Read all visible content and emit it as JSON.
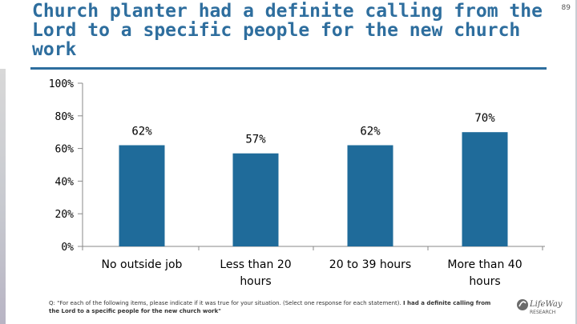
{
  "page_number": "89",
  "title": "Church planter had a definite calling from the Lord to a specific people for the new church work",
  "footnote": {
    "question": "Q: \"For each of the following items, please indicate if it was true for your situation. (Select one response for each statement).",
    "bold_part": "I had a definite calling from the Lord to a specific people for the new church work\""
  },
  "logo": {
    "line1": "LifeWay",
    "line2": "RESEARCH"
  },
  "colors": {
    "bar": "#1f6b9a",
    "title": "#2e6e9e",
    "axis": "#888888"
  },
  "chart_data": {
    "type": "bar",
    "title": "Church planter had a definite calling from the Lord to a specific people for the new church work",
    "categories": [
      [
        "No outside job"
      ],
      [
        "Less than 20",
        "hours"
      ],
      [
        "20 to 39 hours"
      ],
      [
        "More than 40",
        "hours"
      ]
    ],
    "values": [
      62,
      57,
      62,
      70
    ],
    "value_labels": [
      "62%",
      "57%",
      "62%",
      "70%"
    ],
    "y_ticks": [
      "0%",
      "20%",
      "40%",
      "60%",
      "80%",
      "100%"
    ],
    "ylim": [
      0,
      100
    ],
    "grid": false,
    "legend": "none"
  }
}
